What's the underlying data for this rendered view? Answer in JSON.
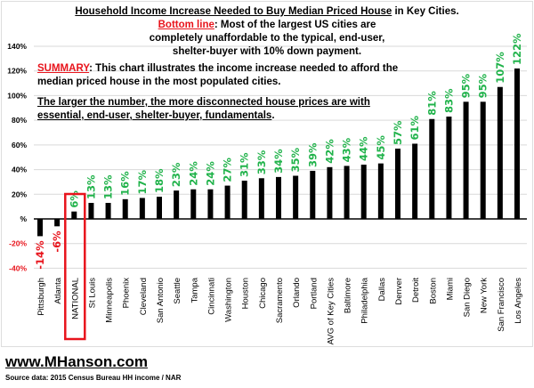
{
  "chart_data": {
    "type": "bar",
    "title": "Household Income Increase Needed to Buy Median Priced House in Key Cities.",
    "title_underlined": "Household Income Increase Needed to Buy Median Priced House",
    "title_rest": " in Key Cities.",
    "subtitle_label": "Bottom line",
    "subtitle_text": ": Most of the largest US cities are completely unaffordable to the typical, end-user, shelter-buyer with 10% down payment.",
    "summary_label": "SUMMARY",
    "summary_text": ":  This chart illustrates the income increase needed to afford the median priced house in the most populated cities.",
    "summary_note": "The larger the number, the more disconnected house prices are with essential, end-user, shelter-buyer, fundamentals",
    "summary_note_end": ".",
    "categories": [
      "Pittsburgh",
      "Atlanta",
      "NATIONAL",
      "St Louis",
      "Minneapolis",
      "Phoenix",
      "Cleveland",
      "San Antonio",
      "Seattle",
      "Tampa",
      "Cincinnati",
      "Washington",
      "Houston",
      "Chicago",
      "Sacramento",
      "Orlando",
      "Portland",
      "AVG of Key Cities",
      "Baltimore",
      "Philadelphia",
      "Dallas",
      "Denver",
      "Detroit",
      "Boston",
      "Miami",
      "San Diego",
      "New York",
      "San Francisco",
      "Los Angeles"
    ],
    "values": [
      -14,
      -6,
      6,
      13,
      13,
      16,
      17,
      18,
      23,
      24,
      24,
      27,
      31,
      33,
      34,
      35,
      39,
      42,
      43,
      44,
      45,
      57,
      61,
      81,
      83,
      95,
      95,
      107,
      122
    ],
    "data_labels": [
      "-14%",
      "-6%",
      "6%",
      "13%",
      "13%",
      "16%",
      "17%",
      "18%",
      "23%",
      "24%",
      "24%",
      "27%",
      "31%",
      "33%",
      "34%",
      "35%",
      "39%",
      "42%",
      "43%",
      "44%",
      "45%",
      "57%",
      "61%",
      "81%",
      "83%",
      "95%",
      "95%",
      "107%",
      "122%"
    ],
    "highlighted": "NATIONAL",
    "yticks": [
      140,
      120,
      100,
      80,
      60,
      40,
      20,
      0,
      -20,
      -40
    ],
    "ytick_labels": [
      "140%",
      "120%",
      "100%",
      "80%",
      "60%",
      "40%",
      "20%",
      "%",
      "-20%",
      "-40%"
    ],
    "ylim": [
      -40,
      140
    ],
    "xlabel": "",
    "ylabel": "",
    "grid": true,
    "colors": {
      "bar": "#000000",
      "positive_label": "#21b34b",
      "negative_label": "#e8141c",
      "highlight_box": "#e8141c",
      "grid": "#d9d9d9"
    }
  },
  "footer": {
    "website": "www.MHanson.com",
    "source": "Source data: 2015 Census Bureau HH income / NAR"
  }
}
